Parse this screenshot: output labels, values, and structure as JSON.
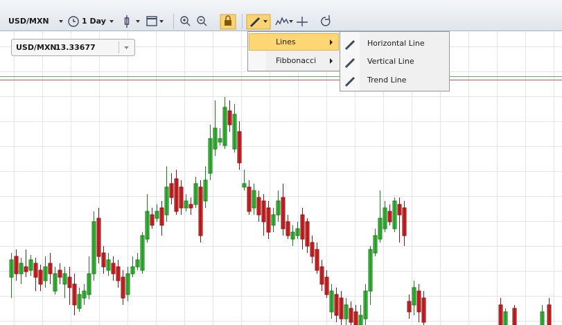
{
  "toolbar": {
    "symbol": "USD/MXN",
    "period": "1 Day"
  },
  "instrument": {
    "symbol": "USD/MXN",
    "price": "13.33677"
  },
  "menu": {
    "items": [
      "Lines",
      "Fibbonacci"
    ]
  },
  "submenu": {
    "items": [
      "Horizontal Line",
      "Vertical Line",
      "Trend Line"
    ]
  }
}
